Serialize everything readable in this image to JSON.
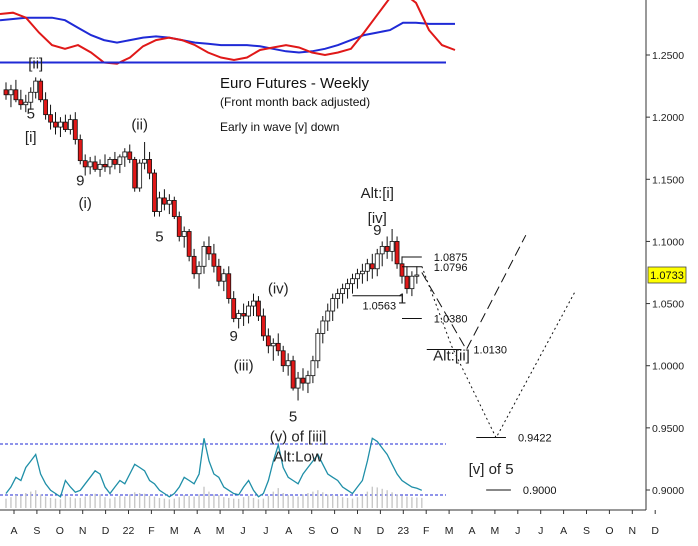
{
  "chart_data": {
    "type": "candlestick",
    "title": "Euro Futures - Weekly",
    "subtitle": "(Front month back adjusted)",
    "note": "Early in wave [v] down",
    "ylim": [
      0.89,
      1.3
    ],
    "yticks": [
      "1.2500",
      "1.2000",
      "1.1500",
      "1.1000",
      "1.0500",
      "1.0000",
      "0.9500",
      "0.9000"
    ],
    "ytick_values": [
      1.25,
      1.2,
      1.15,
      1.1,
      1.05,
      1.0,
      0.95,
      0.9
    ],
    "xticks": [
      "A",
      "S",
      "O",
      "N",
      "D",
      "22",
      "F",
      "M",
      "A",
      "M",
      "J",
      "J",
      "A",
      "S",
      "O",
      "N",
      "D",
      "23",
      "F",
      "M",
      "A",
      "M",
      "J",
      "J",
      "A",
      "S",
      "O",
      "N",
      "D"
    ],
    "last_price": "1.0733",
    "candles": [
      {
        "o": 1.222,
        "h": 1.228,
        "l": 1.214,
        "c": 1.218
      },
      {
        "o": 1.218,
        "h": 1.226,
        "l": 1.208,
        "c": 1.222
      },
      {
        "o": 1.222,
        "h": 1.23,
        "l": 1.212,
        "c": 1.214
      },
      {
        "o": 1.214,
        "h": 1.222,
        "l": 1.206,
        "c": 1.21
      },
      {
        "o": 1.21,
        "h": 1.218,
        "l": 1.204,
        "c": 1.212
      },
      {
        "o": 1.212,
        "h": 1.224,
        "l": 1.206,
        "c": 1.22
      },
      {
        "o": 1.22,
        "h": 1.232,
        "l": 1.215,
        "c": 1.229
      },
      {
        "o": 1.229,
        "h": 1.231,
        "l": 1.212,
        "c": 1.214
      },
      {
        "o": 1.214,
        "h": 1.22,
        "l": 1.198,
        "c": 1.202
      },
      {
        "o": 1.202,
        "h": 1.21,
        "l": 1.19,
        "c": 1.196
      },
      {
        "o": 1.196,
        "h": 1.204,
        "l": 1.186,
        "c": 1.192
      },
      {
        "o": 1.192,
        "h": 1.2,
        "l": 1.184,
        "c": 1.196
      },
      {
        "o": 1.196,
        "h": 1.202,
        "l": 1.188,
        "c": 1.19
      },
      {
        "o": 1.19,
        "h": 1.202,
        "l": 1.186,
        "c": 1.198
      },
      {
        "o": 1.198,
        "h": 1.204,
        "l": 1.178,
        "c": 1.182
      },
      {
        "o": 1.182,
        "h": 1.186,
        "l": 1.162,
        "c": 1.165
      },
      {
        "o": 1.165,
        "h": 1.17,
        "l": 1.153,
        "c": 1.16
      },
      {
        "o": 1.16,
        "h": 1.168,
        "l": 1.154,
        "c": 1.164
      },
      {
        "o": 1.164,
        "h": 1.169,
        "l": 1.156,
        "c": 1.158
      },
      {
        "o": 1.158,
        "h": 1.166,
        "l": 1.152,
        "c": 1.162
      },
      {
        "o": 1.162,
        "h": 1.17,
        "l": 1.156,
        "c": 1.16
      },
      {
        "o": 1.16,
        "h": 1.168,
        "l": 1.154,
        "c": 1.166
      },
      {
        "o": 1.166,
        "h": 1.172,
        "l": 1.158,
        "c": 1.162
      },
      {
        "o": 1.162,
        "h": 1.17,
        "l": 1.155,
        "c": 1.168
      },
      {
        "o": 1.168,
        "h": 1.175,
        "l": 1.16,
        "c": 1.172
      },
      {
        "o": 1.172,
        "h": 1.178,
        "l": 1.163,
        "c": 1.166
      },
      {
        "o": 1.166,
        "h": 1.168,
        "l": 1.14,
        "c": 1.143
      },
      {
        "o": 1.143,
        "h": 1.166,
        "l": 1.14,
        "c": 1.163
      },
      {
        "o": 1.163,
        "h": 1.18,
        "l": 1.158,
        "c": 1.166
      },
      {
        "o": 1.166,
        "h": 1.172,
        "l": 1.15,
        "c": 1.155
      },
      {
        "o": 1.155,
        "h": 1.158,
        "l": 1.12,
        "c": 1.124
      },
      {
        "o": 1.124,
        "h": 1.14,
        "l": 1.12,
        "c": 1.135
      },
      {
        "o": 1.135,
        "h": 1.142,
        "l": 1.125,
        "c": 1.13
      },
      {
        "o": 1.13,
        "h": 1.138,
        "l": 1.122,
        "c": 1.133
      },
      {
        "o": 1.133,
        "h": 1.136,
        "l": 1.118,
        "c": 1.12
      },
      {
        "o": 1.12,
        "h": 1.124,
        "l": 1.1,
        "c": 1.104
      },
      {
        "o": 1.104,
        "h": 1.112,
        "l": 1.095,
        "c": 1.108
      },
      {
        "o": 1.108,
        "h": 1.11,
        "l": 1.084,
        "c": 1.088
      },
      {
        "o": 1.088,
        "h": 1.094,
        "l": 1.07,
        "c": 1.074
      },
      {
        "o": 1.074,
        "h": 1.084,
        "l": 1.062,
        "c": 1.08
      },
      {
        "o": 1.08,
        "h": 1.1,
        "l": 1.074,
        "c": 1.096
      },
      {
        "o": 1.096,
        "h": 1.104,
        "l": 1.085,
        "c": 1.09
      },
      {
        "o": 1.09,
        "h": 1.098,
        "l": 1.075,
        "c": 1.08
      },
      {
        "o": 1.08,
        "h": 1.086,
        "l": 1.064,
        "c": 1.068
      },
      {
        "o": 1.068,
        "h": 1.078,
        "l": 1.06,
        "c": 1.074
      },
      {
        "o": 1.074,
        "h": 1.08,
        "l": 1.05,
        "c": 1.054
      },
      {
        "o": 1.054,
        "h": 1.06,
        "l": 1.035,
        "c": 1.038
      },
      {
        "o": 1.038,
        "h": 1.045,
        "l": 1.03,
        "c": 1.042
      },
      {
        "o": 1.042,
        "h": 1.05,
        "l": 1.032,
        "c": 1.04
      },
      {
        "o": 1.04,
        "h": 1.052,
        "l": 1.034,
        "c": 1.048
      },
      {
        "o": 1.048,
        "h": 1.058,
        "l": 1.04,
        "c": 1.052
      },
      {
        "o": 1.052,
        "h": 1.056,
        "l": 1.036,
        "c": 1.04
      },
      {
        "o": 1.04,
        "h": 1.046,
        "l": 1.02,
        "c": 1.024
      },
      {
        "o": 1.024,
        "h": 1.03,
        "l": 1.01,
        "c": 1.016
      },
      {
        "o": 1.016,
        "h": 1.022,
        "l": 1.004,
        "c": 1.018
      },
      {
        "o": 1.018,
        "h": 1.026,
        "l": 1.008,
        "c": 1.012
      },
      {
        "o": 1.012,
        "h": 1.016,
        "l": 0.995,
        "c": 1.0
      },
      {
        "o": 1.0,
        "h": 1.01,
        "l": 0.992,
        "c": 1.004
      },
      {
        "o": 1.004,
        "h": 1.008,
        "l": 0.98,
        "c": 0.982
      },
      {
        "o": 0.982,
        "h": 0.995,
        "l": 0.972,
        "c": 0.99
      },
      {
        "o": 0.99,
        "h": 0.998,
        "l": 0.98,
        "c": 0.986
      },
      {
        "o": 0.986,
        "h": 0.996,
        "l": 0.978,
        "c": 0.992
      },
      {
        "o": 0.992,
        "h": 1.008,
        "l": 0.986,
        "c": 1.004
      },
      {
        "o": 1.004,
        "h": 1.03,
        "l": 0.998,
        "c": 1.026
      },
      {
        "o": 1.026,
        "h": 1.04,
        "l": 1.018,
        "c": 1.036
      },
      {
        "o": 1.036,
        "h": 1.05,
        "l": 1.028,
        "c": 1.044
      },
      {
        "o": 1.044,
        "h": 1.058,
        "l": 1.036,
        "c": 1.054
      },
      {
        "o": 1.054,
        "h": 1.062,
        "l": 1.046,
        "c": 1.058
      },
      {
        "o": 1.058,
        "h": 1.066,
        "l": 1.05,
        "c": 1.062
      },
      {
        "o": 1.062,
        "h": 1.07,
        "l": 1.054,
        "c": 1.066
      },
      {
        "o": 1.066,
        "h": 1.074,
        "l": 1.058,
        "c": 1.07
      },
      {
        "o": 1.07,
        "h": 1.078,
        "l": 1.062,
        "c": 1.074
      },
      {
        "o": 1.074,
        "h": 1.082,
        "l": 1.066,
        "c": 1.076
      },
      {
        "o": 1.076,
        "h": 1.086,
        "l": 1.068,
        "c": 1.082
      },
      {
        "o": 1.082,
        "h": 1.09,
        "l": 1.07,
        "c": 1.078
      },
      {
        "o": 1.078,
        "h": 1.094,
        "l": 1.072,
        "c": 1.09
      },
      {
        "o": 1.09,
        "h": 1.1,
        "l": 1.08,
        "c": 1.096
      },
      {
        "o": 1.096,
        "h": 1.104,
        "l": 1.086,
        "c": 1.092
      },
      {
        "o": 1.092,
        "h": 1.11,
        "l": 1.084,
        "c": 1.1
      },
      {
        "o": 1.1,
        "h": 1.104,
        "l": 1.078,
        "c": 1.082
      },
      {
        "o": 1.082,
        "h": 1.088,
        "l": 1.066,
        "c": 1.072
      },
      {
        "o": 1.072,
        "h": 1.08,
        "l": 1.058,
        "c": 1.062
      },
      {
        "o": 1.062,
        "h": 1.076,
        "l": 1.056,
        "c": 1.072
      },
      {
        "o": 1.072,
        "h": 1.08,
        "l": 1.066,
        "c": 1.073
      }
    ],
    "moving_averages": {
      "red": [
        1.283,
        1.284,
        1.28,
        1.268,
        1.258,
        1.255,
        1.258,
        1.252,
        1.244,
        1.243,
        1.248,
        1.257,
        1.262,
        1.264,
        1.262,
        1.258,
        1.252,
        1.248,
        1.246,
        1.248,
        1.254,
        1.256,
        1.258,
        1.256,
        1.252,
        1.25,
        1.252,
        1.255,
        1.268,
        1.282,
        1.296,
        1.3,
        1.292,
        1.27,
        1.258,
        1.254
      ],
      "blue": [
        1.278,
        1.279,
        1.28,
        1.28,
        1.28,
        1.278,
        1.272,
        1.266,
        1.262,
        1.26,
        1.262,
        1.264,
        1.265,
        1.264,
        1.262,
        1.26,
        1.259,
        1.258,
        1.258,
        1.258,
        1.257,
        1.255,
        1.253,
        1.252,
        1.253,
        1.255,
        1.258,
        1.262,
        1.266,
        1.268,
        1.27,
        1.276,
        1.276,
        1.275,
        1.275,
        1.275
      ],
      "blue_flat": 1.244
    },
    "wave_labels": [
      {
        "text": "[ii]",
        "i": 6,
        "price": 1.239
      },
      {
        "text": "5",
        "i": 5,
        "price": 1.199,
        "color": "#8a6d1f"
      },
      {
        "text": "[i]",
        "i": 5,
        "price": 1.18
      },
      {
        "text": "(ii)",
        "i": 27,
        "price": 1.19
      },
      {
        "text": "9",
        "i": 15,
        "price": 1.145,
        "color": "#1f3fa6"
      },
      {
        "text": "(i)",
        "i": 16,
        "price": 1.127
      },
      {
        "text": "5",
        "i": 31,
        "price": 1.1,
        "color": "#8a6d1f"
      },
      {
        "text": "9",
        "i": 46,
        "price": 1.02,
        "color": "#1f3fa6"
      },
      {
        "text": "(iv)",
        "i": 55,
        "price": 1.058
      },
      {
        "text": "(iii)",
        "i": 48,
        "price": 0.996
      },
      {
        "text": "5",
        "i": 58,
        "price": 0.955,
        "color": "#8a6d1f"
      },
      {
        "text": "(v) of [iii]",
        "i": 59,
        "price": 0.939
      },
      {
        "text": "Alt:Low",
        "i": 59,
        "price": 0.923
      },
      {
        "text": "Alt:[i]",
        "i": 75,
        "price": 1.135
      },
      {
        "text": "[iv]",
        "i": 75,
        "price": 1.115
      },
      {
        "text": "9",
        "i": 75,
        "price": 1.105,
        "color": "#c02020"
      },
      {
        "text": "1",
        "i": 80,
        "price": 1.05,
        "color": "#1f3fa6"
      },
      {
        "text": "Alt:[ii]",
        "i": 90,
        "price": 1.004
      },
      {
        "text": "[v] of 5",
        "i": 98,
        "price": 0.913
      }
    ],
    "levels": [
      {
        "label": "1.0875",
        "value": 1.0875,
        "from": 80,
        "to": 84
      },
      {
        "label": "1.0796",
        "value": 1.0796,
        "from": 80,
        "to": 84
      },
      {
        "label": "1.0563",
        "value": 1.0563,
        "from": 70,
        "to": 80
      },
      {
        "label": "1.0380",
        "value": 1.038,
        "from": 80,
        "to": 84
      },
      {
        "label": "1.0130",
        "value": 1.013,
        "from": 85,
        "to": 92
      },
      {
        "label": "0.9422",
        "value": 0.9422,
        "from": 95,
        "to": 101
      },
      {
        "label": "0.9000",
        "value": 0.9,
        "from": 97,
        "to": 102
      }
    ],
    "projections": {
      "dashed": [
        [
          84,
          1.075
        ],
        [
          93,
          1.013
        ],
        [
          105,
          1.105
        ]
      ],
      "dotted": [
        [
          84,
          1.08
        ],
        [
          90,
          1.016
        ],
        [
          99,
          0.942
        ],
        [
          115,
          1.06
        ]
      ]
    },
    "oscillator": [
      0.1,
      0.2,
      0.35,
      0.3,
      0.5,
      0.6,
      0.7,
      0.4,
      0.25,
      0.15,
      0.1,
      0.05,
      0.3,
      0.2,
      0.12,
      0.15,
      0.25,
      0.35,
      0.45,
      0.4,
      0.2,
      0.1,
      0.2,
      0.3,
      0.25,
      0.4,
      0.55,
      0.5,
      0.45,
      0.3,
      0.25,
      0.15,
      0.1,
      0.05,
      0.1,
      0.2,
      0.35,
      0.3,
      0.25,
      0.4,
      0.95,
      0.6,
      0.4,
      0.35,
      0.2,
      0.15,
      0.1,
      0.08,
      0.2,
      0.3,
      0.15,
      0.05,
      0.1,
      0.3,
      0.6,
      0.85,
      0.5,
      0.35,
      0.3,
      0.25,
      0.4,
      0.5,
      0.6,
      0.7,
      0.55,
      0.4,
      0.35,
      0.3,
      0.2,
      0.15,
      0.1,
      0.2,
      0.3,
      0.6,
      0.95,
      0.9,
      0.8,
      0.7,
      0.55,
      0.4,
      0.3,
      0.25,
      0.2,
      0.18,
      0.15
    ]
  }
}
